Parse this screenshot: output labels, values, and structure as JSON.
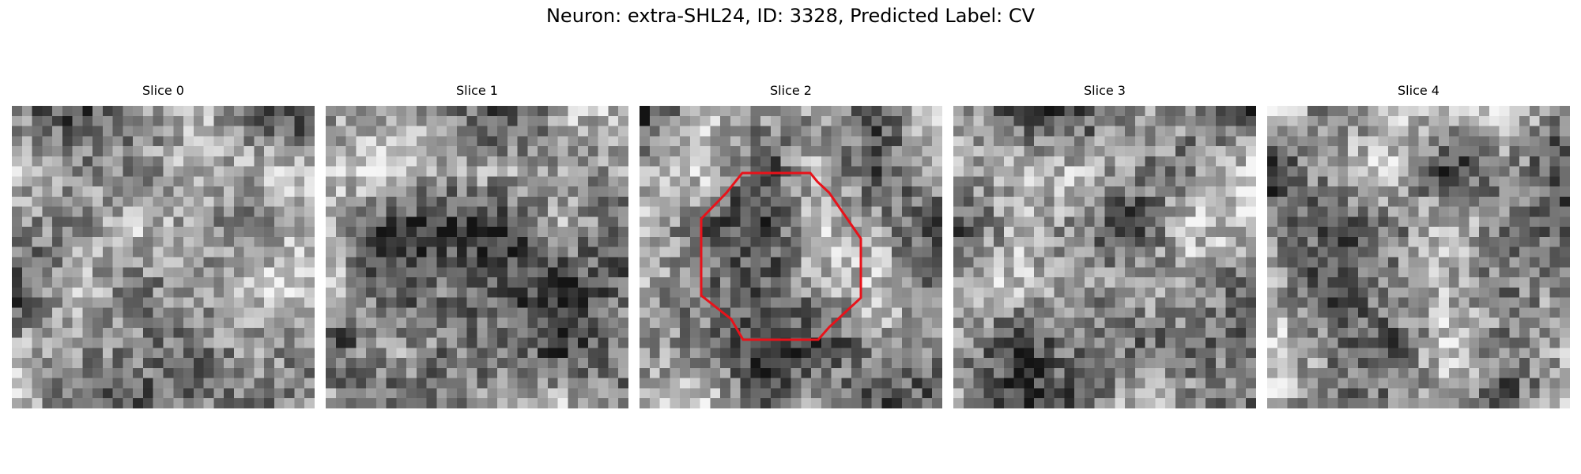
{
  "figure": {
    "title": "Neuron: extra-SHL24, ID: 3328, Predicted Label: CV"
  },
  "panels": [
    {
      "title": "Slice 0",
      "has_roi": false
    },
    {
      "title": "Slice 1",
      "has_roi": false
    },
    {
      "title": "Slice 2",
      "has_roi": true
    },
    {
      "title": "Slice 3",
      "has_roi": false
    },
    {
      "title": "Slice 4",
      "has_roi": false
    }
  ],
  "image": {
    "colormap": "grayscale",
    "grid_size": 30
  },
  "roi": {
    "color": "#e8121a",
    "shape": "octagon"
  }
}
